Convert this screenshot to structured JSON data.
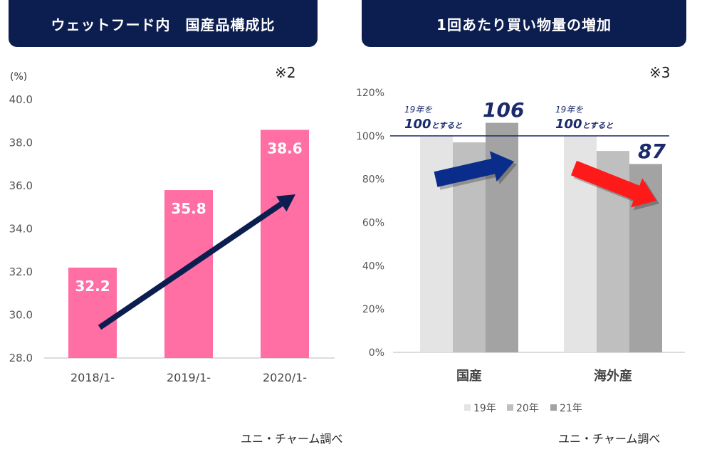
{
  "left_panel": {
    "title": "ウェットフード内　国産品構成比",
    "note": "※2",
    "source": "ユニ・チャーム調べ"
  },
  "right_panel": {
    "title": "1回あたり買い物量の増加",
    "note": "※3",
    "source": "ユニ・チャーム調べ",
    "annotation_line1": "19年を",
    "annotation_line2_big": "100",
    "annotation_line2_small": "とすると",
    "callout_domestic": "106",
    "callout_overseas": "87"
  },
  "colors": {
    "navy": "#0c1e4f",
    "pink": "#ff6fa4",
    "arrow_red": "#ff1a1a",
    "arrow_blue": "#0a2d8c",
    "bar_19": "#e4e4e4",
    "bar_20": "#bfbfbf",
    "bar_21": "#a3a3a3"
  },
  "chart_data": [
    {
      "type": "bar",
      "title": "ウェットフード内　国産品構成比",
      "ylabel": "(%)",
      "categories": [
        "2018/1-",
        "2019/1-",
        "2020/1-"
      ],
      "values": [
        32.2,
        35.8,
        38.6
      ],
      "ylim": [
        28.0,
        40.0
      ],
      "yticks": [
        "28.0",
        "30.0",
        "32.0",
        "34.0",
        "36.0",
        "38.0",
        "40.0"
      ],
      "grid": false,
      "legend": "none"
    },
    {
      "type": "bar",
      "title": "1回あたり買い物量の増加",
      "categories": [
        "国産",
        "海外産"
      ],
      "series": [
        {
          "name": "19年",
          "values": [
            100,
            100
          ]
        },
        {
          "name": "20年",
          "values": [
            97,
            93
          ]
        },
        {
          "name": "21年",
          "values": [
            106,
            87
          ]
        }
      ],
      "ylim": [
        0,
        120
      ],
      "yticks": [
        "0%",
        "20%",
        "40%",
        "60%",
        "80%",
        "100%",
        "120%"
      ],
      "reference_line": 100,
      "grid": false,
      "legend": "bottom"
    }
  ]
}
